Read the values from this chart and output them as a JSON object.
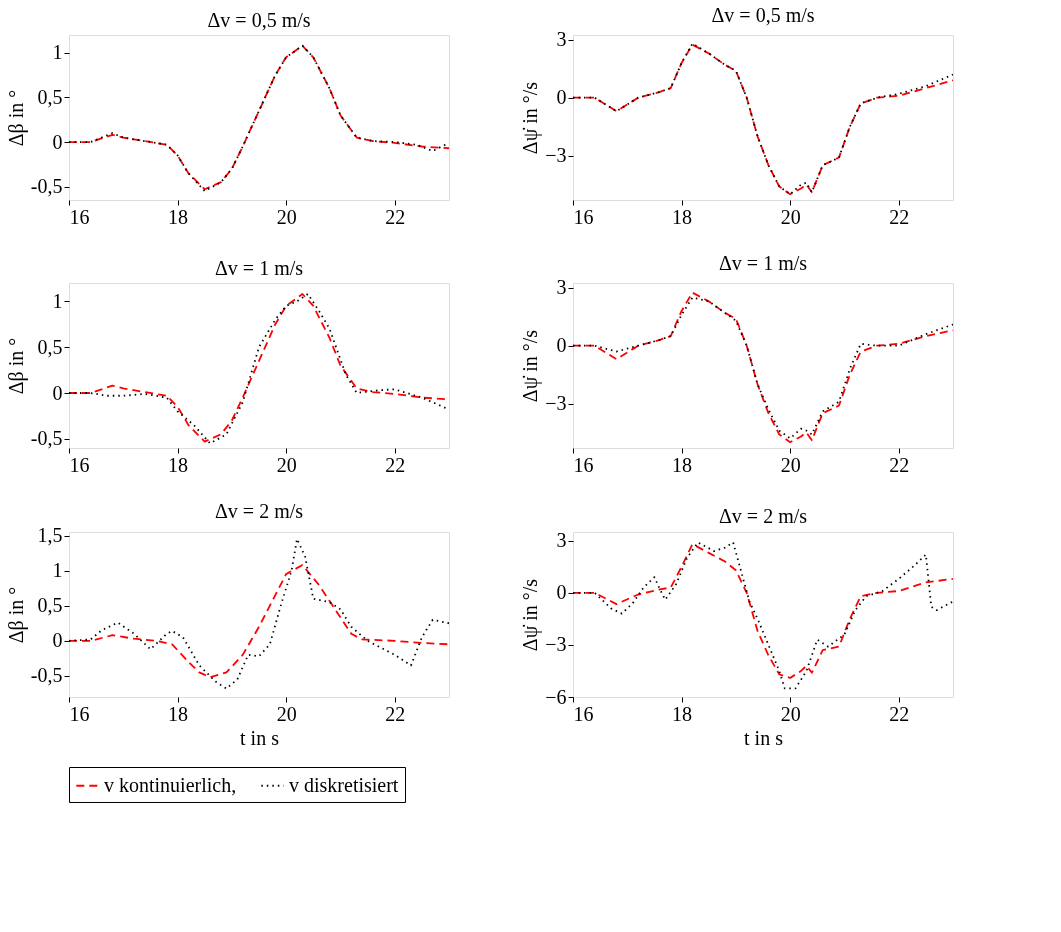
{
  "chart_data": [
    {
      "type": "line",
      "title": "Δv = 0,5 m/s",
      "ylabel": "Δβ in °",
      "xlim": [
        16,
        23
      ],
      "xticks": [
        16,
        18,
        20,
        22
      ],
      "ylim": [
        -0.65,
        1.2
      ],
      "yticks": [
        {
          "value": -0.5,
          "label": "-0,5"
        },
        0,
        {
          "value": 0.5,
          "label": "0,5"
        },
        1
      ],
      "legend": "bottom",
      "series": [
        {
          "name": "v kontinuierlich,",
          "color": "#ff0000",
          "line_style": "dashed",
          "x": [
            16,
            16.4,
            16.6,
            16.8,
            17.0,
            17.4,
            17.8,
            18.0,
            18.2,
            18.5,
            18.8,
            19.0,
            19.2,
            19.5,
            19.8,
            20.0,
            20.3,
            20.5,
            20.8,
            21.0,
            21.3,
            21.6,
            22.0,
            22.5,
            23
          ],
          "values": [
            0,
            0,
            0.04,
            0.08,
            0.05,
            0.01,
            -0.03,
            -0.15,
            -0.35,
            -0.53,
            -0.45,
            -0.3,
            -0.05,
            0.35,
            0.75,
            0.95,
            1.08,
            0.95,
            0.6,
            0.3,
            0.05,
            0.01,
            -0.01,
            -0.05,
            -0.07
          ]
        },
        {
          "name": "v diskretisiert",
          "color": "#000000",
          "line_style": "dotted",
          "x": [
            16,
            16.4,
            16.6,
            16.8,
            17.0,
            17.4,
            17.8,
            18.0,
            18.2,
            18.5,
            18.8,
            19.0,
            19.2,
            19.5,
            19.8,
            20.0,
            20.3,
            20.5,
            20.8,
            21.0,
            21.3,
            21.6,
            22.0,
            22.4,
            22.7,
            23
          ],
          "values": [
            0,
            0,
            0.05,
            0.1,
            0.05,
            0.01,
            -0.03,
            -0.15,
            -0.35,
            -0.55,
            -0.45,
            -0.3,
            -0.05,
            0.35,
            0.75,
            0.95,
            1.08,
            0.95,
            0.6,
            0.3,
            0.05,
            0.01,
            0.0,
            -0.03,
            -0.1,
            -0.01
          ]
        }
      ]
    },
    {
      "type": "line",
      "title": "Δv = 0,5 m/s",
      "ylabel": "Δψ̇ in °/s",
      "xlim": [
        16,
        23
      ],
      "xticks": [
        16,
        18,
        20,
        22
      ],
      "ylim": [
        -5.3,
        3.25
      ],
      "yticks": [
        -3,
        0,
        3
      ],
      "legend": "bottom",
      "series": [
        {
          "name": "v kontinuierlich,",
          "color": "#ff0000",
          "line_style": "dashed",
          "x": [
            16,
            16.4,
            16.8,
            17.2,
            17.6,
            17.8,
            18.0,
            18.2,
            18.5,
            18.8,
            19.0,
            19.2,
            19.4,
            19.6,
            19.8,
            20.0,
            20.2,
            20.3,
            20.4,
            20.6,
            20.9,
            21.1,
            21.3,
            21.6,
            22.0,
            22.5,
            23
          ],
          "values": [
            0,
            0,
            -0.7,
            0,
            0.3,
            0.5,
            1.8,
            2.75,
            2.3,
            1.7,
            1.4,
            0,
            -2.0,
            -3.5,
            -4.6,
            -5.0,
            -4.7,
            -4.5,
            -4.9,
            -3.5,
            -3.1,
            -1.5,
            -0.3,
            0,
            0.1,
            0.5,
            0.9
          ]
        },
        {
          "name": "v diskretisiert",
          "color": "#000000",
          "line_style": "dotted",
          "x": [
            16,
            16.4,
            16.8,
            17.2,
            17.6,
            17.8,
            18.0,
            18.2,
            18.5,
            18.8,
            19.0,
            19.2,
            19.4,
            19.6,
            19.8,
            20.0,
            20.2,
            20.3,
            20.4,
            20.6,
            20.9,
            21.1,
            21.3,
            21.6,
            22.0,
            22.5,
            23
          ],
          "values": [
            0,
            0,
            -0.7,
            0,
            0.3,
            0.5,
            1.8,
            2.8,
            2.3,
            1.7,
            1.4,
            0,
            -2.0,
            -3.5,
            -4.6,
            -5.0,
            -4.5,
            -4.4,
            -4.9,
            -3.5,
            -3.1,
            -1.5,
            -0.3,
            0,
            0.2,
            0.6,
            1.2
          ]
        }
      ]
    },
    {
      "type": "line",
      "title": "Δv = 1 m/s",
      "ylabel": "Δβ in °",
      "xlim": [
        16,
        23
      ],
      "xticks": [
        16,
        18,
        20,
        22
      ],
      "ylim": [
        -0.6,
        1.2
      ],
      "yticks": [
        {
          "value": -0.5,
          "label": "-0,5"
        },
        0,
        {
          "value": 0.5,
          "label": "0,5"
        },
        1
      ],
      "legend": "bottom",
      "series": [
        {
          "name": "v kontinuierlich,",
          "color": "#ff0000",
          "line_style": "dashed",
          "x": [
            16,
            16.4,
            16.6,
            16.8,
            17.0,
            17.4,
            17.8,
            18.0,
            18.2,
            18.5,
            18.8,
            19.0,
            19.2,
            19.5,
            19.8,
            20.0,
            20.3,
            20.5,
            20.8,
            21.0,
            21.3,
            21.6,
            22.0,
            22.5,
            23
          ],
          "values": [
            0,
            0,
            0.04,
            0.08,
            0.05,
            0.01,
            -0.03,
            -0.15,
            -0.35,
            -0.53,
            -0.45,
            -0.3,
            -0.05,
            0.35,
            0.75,
            0.95,
            1.08,
            0.95,
            0.6,
            0.3,
            0.05,
            0.01,
            -0.01,
            -0.05,
            -0.07
          ]
        },
        {
          "name": "v diskretisiert",
          "color": "#000000",
          "line_style": "dotted",
          "x": [
            16,
            16.4,
            16.7,
            17.0,
            17.4,
            17.8,
            18.0,
            18.3,
            18.6,
            18.9,
            19.2,
            19.5,
            19.8,
            20.0,
            20.2,
            20.4,
            20.6,
            20.8,
            21.1,
            21.3,
            21.7,
            22.0,
            22.5,
            23
          ],
          "values": [
            0,
            0,
            -0.03,
            -0.03,
            -0.01,
            -0.05,
            -0.2,
            -0.35,
            -0.55,
            -0.45,
            -0.1,
            0.5,
            0.8,
            0.95,
            1.0,
            1.08,
            0.9,
            0.7,
            0.2,
            0.0,
            0.03,
            0.04,
            -0.05,
            -0.18
          ]
        }
      ]
    },
    {
      "type": "line",
      "title": "Δv = 1 m/s",
      "ylabel": "Δψ̇ in °/s",
      "xlim": [
        16,
        23
      ],
      "xticks": [
        16,
        18,
        20,
        22
      ],
      "ylim": [
        -5.3,
        3.25
      ],
      "yticks": [
        -3,
        0,
        3
      ],
      "legend": "bottom",
      "series": [
        {
          "name": "v kontinuierlich,",
          "color": "#ff0000",
          "line_style": "dashed",
          "x": [
            16,
            16.4,
            16.8,
            17.2,
            17.6,
            17.8,
            18.0,
            18.2,
            18.5,
            18.8,
            19.0,
            19.2,
            19.4,
            19.6,
            19.8,
            20.0,
            20.2,
            20.3,
            20.4,
            20.6,
            20.9,
            21.1,
            21.3,
            21.6,
            22.0,
            22.5,
            23
          ],
          "values": [
            0,
            0,
            -0.7,
            0,
            0.3,
            0.5,
            1.8,
            2.75,
            2.3,
            1.7,
            1.4,
            0,
            -2.0,
            -3.5,
            -4.6,
            -5.0,
            -4.7,
            -4.5,
            -4.9,
            -3.5,
            -3.1,
            -1.5,
            -0.3,
            0,
            0.1,
            0.5,
            0.8
          ]
        },
        {
          "name": "v diskretisiert",
          "color": "#000000",
          "line_style": "dotted",
          "x": [
            16,
            16.4,
            16.8,
            17.2,
            17.6,
            17.8,
            18.0,
            18.2,
            18.5,
            18.8,
            19.0,
            19.2,
            19.4,
            19.6,
            19.8,
            20.0,
            20.2,
            20.3,
            20.4,
            20.6,
            20.9,
            21.1,
            21.3,
            21.6,
            22.0,
            22.5,
            23
          ],
          "values": [
            0,
            0,
            -0.3,
            0,
            0.3,
            0.5,
            1.6,
            2.5,
            2.3,
            1.7,
            1.3,
            0,
            -2.0,
            -3.3,
            -4.4,
            -4.8,
            -4.3,
            -4.4,
            -4.6,
            -3.4,
            -2.9,
            -1.2,
            0.1,
            0,
            0.0,
            0.6,
            1.1
          ]
        }
      ]
    },
    {
      "type": "line",
      "title": "Δv = 2 m/s",
      "xlabel": "t in s",
      "ylabel": "Δβ in °",
      "xlim": [
        16,
        23
      ],
      "xticks": [
        16,
        18,
        20,
        22
      ],
      "ylim": [
        -0.8,
        1.55
      ],
      "yticks": [
        {
          "value": -0.5,
          "label": "-0,5"
        },
        0,
        {
          "value": 0.5,
          "label": "0,5"
        },
        1,
        {
          "value": 1.5,
          "label": "1,5"
        }
      ],
      "legend": "bottom",
      "series": [
        {
          "name": "v kontinuierlich,",
          "color": "#ff0000",
          "line_style": "dashed",
          "x": [
            16,
            16.4,
            16.8,
            17.2,
            17.6,
            17.9,
            18.2,
            18.4,
            18.6,
            18.9,
            19.2,
            19.5,
            19.8,
            20.0,
            20.3,
            20.6,
            20.9,
            21.2,
            21.4,
            22,
            22.5,
            23
          ],
          "values": [
            0,
            0,
            0.08,
            0.03,
            0,
            -0.05,
            -0.3,
            -0.45,
            -0.52,
            -0.45,
            -0.2,
            0.2,
            0.65,
            0.95,
            1.08,
            0.8,
            0.45,
            0.1,
            0.02,
            0,
            -0.03,
            -0.05
          ]
        },
        {
          "name": "v diskretisiert",
          "color": "#000000",
          "line_style": "dotted",
          "x": [
            16,
            16.4,
            16.6,
            16.9,
            17.2,
            17.5,
            17.8,
            17.9,
            18.1,
            18.4,
            18.7,
            18.9,
            19.1,
            19.3,
            19.5,
            19.7,
            19.9,
            20.1,
            20.2,
            20.35,
            20.5,
            20.8,
            21.0,
            21.2,
            21.5,
            22.0,
            22.3,
            22.5,
            22.7,
            23
          ],
          "values": [
            0,
            0.02,
            0.15,
            0.26,
            0.1,
            -0.12,
            0.1,
            0.14,
            0.05,
            -0.35,
            -0.58,
            -0.68,
            -0.55,
            -0.2,
            -0.22,
            -0.05,
            0.5,
            1.0,
            1.45,
            1.2,
            0.6,
            0.55,
            0.45,
            0.2,
            0.0,
            -0.2,
            -0.35,
            0.05,
            0.3,
            0.25
          ]
        }
      ]
    },
    {
      "type": "line",
      "title": "Δv = 2 m/s",
      "xlabel": "t in s",
      "ylabel": "Δψ̇ in °/s",
      "xlim": [
        16,
        23
      ],
      "xticks": [
        16,
        18,
        20,
        22
      ],
      "ylim": [
        -6,
        3.5
      ],
      "yticks": [
        -6,
        -3,
        0,
        3
      ],
      "legend": "bottom",
      "series": [
        {
          "name": "v kontinuierlich,",
          "color": "#ff0000",
          "line_style": "dashed",
          "x": [
            16,
            16.4,
            16.8,
            17.2,
            17.6,
            17.8,
            18.0,
            18.2,
            18.5,
            18.8,
            19.0,
            19.2,
            19.4,
            19.6,
            19.8,
            20.0,
            20.2,
            20.3,
            20.4,
            20.6,
            20.9,
            21.1,
            21.3,
            21.6,
            22.0,
            22.5,
            23
          ],
          "values": [
            0,
            0,
            -0.65,
            -0.1,
            0.2,
            0.3,
            1.5,
            2.8,
            2.3,
            1.8,
            1.3,
            0,
            -2.2,
            -3.6,
            -4.7,
            -4.9,
            -4.5,
            -4.2,
            -4.6,
            -3.3,
            -3.1,
            -1.5,
            -0.2,
            0,
            0.1,
            0.6,
            0.8
          ]
        },
        {
          "name": "v diskretisiert",
          "color": "#000000",
          "line_style": "dotted",
          "x": [
            16,
            16.4,
            16.7,
            16.9,
            17.1,
            17.3,
            17.5,
            17.6,
            17.7,
            17.9,
            18.1,
            18.3,
            18.6,
            18.8,
            18.95,
            19.1,
            19.25,
            19.4,
            19.6,
            19.8,
            19.9,
            20.1,
            20.3,
            20.5,
            20.7,
            21.0,
            21.2,
            21.4,
            21.7,
            22.0,
            22.3,
            22.5,
            22.6,
            22.7,
            23
          ],
          "values": [
            0,
            0,
            -0.9,
            -1.2,
            -0.6,
            0.3,
            0.9,
            0.2,
            -0.4,
            0.5,
            2.0,
            2.9,
            2.4,
            2.6,
            2.9,
            1.2,
            -0.5,
            -1.5,
            -3.0,
            -4.5,
            -5.5,
            -5.5,
            -4.5,
            -2.7,
            -3.1,
            -2.4,
            -1.0,
            -0.2,
            0.1,
            0.8,
            1.6,
            2.2,
            -0.8,
            -1.0,
            -0.5
          ]
        }
      ]
    }
  ]
}
